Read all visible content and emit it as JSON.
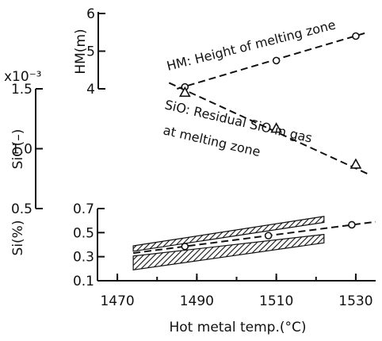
{
  "chart_data": [
    {
      "type": "line",
      "panel": "HM",
      "ylabel": "HM(m)",
      "ylim": [
        4,
        6
      ],
      "yticks": [
        "4",
        "5",
        "6"
      ],
      "series": [
        {
          "name": "HM: Height of melting zone",
          "marker": "circle",
          "x": [
            1487,
            1510,
            1530
          ],
          "y": [
            4.05,
            4.75,
            5.4
          ],
          "trend_x": [
            1485,
            1533
          ],
          "trend_y": [
            4.0,
            5.5
          ]
        }
      ],
      "annotation": "HM: Height of melting zone"
    },
    {
      "type": "line",
      "panel": "SiO",
      "ylabel": "SiO(–)",
      "yscale_label": "x10⁻³",
      "ylim": [
        0.5,
        1.5
      ],
      "yticks": [
        "0.5",
        "1.0",
        "1.5"
      ],
      "series": [
        {
          "name": "SiO: Residual SiO in gas at melting zone",
          "marker": "triangle",
          "x": [
            1487,
            1510,
            1530
          ],
          "y": [
            1.47,
            1.17,
            0.87
          ],
          "trend_x": [
            1483,
            1533
          ],
          "trend_y": [
            1.55,
            0.79
          ]
        }
      ],
      "annotation_lines": [
        "SiO: Residual SiO in gas",
        "at melting zone"
      ]
    },
    {
      "type": "line",
      "panel": "Si",
      "xlabel": "Hot metal temp.(°C)",
      "ylabel": "Si(%)",
      "ylim": [
        0.1,
        0.7
      ],
      "yticks": [
        "0.1",
        "0.3",
        "0.5",
        "0.7"
      ],
      "xlim": [
        1465,
        1535
      ],
      "xticks": [
        "1470",
        "1490",
        "1510",
        "1530"
      ],
      "series": [
        {
          "name": "Si",
          "marker": "circle",
          "x": [
            1487,
            1508,
            1529
          ],
          "y": [
            0.385,
            0.475,
            0.565
          ],
          "trend_x": [
            1474,
            1535
          ],
          "trend_y": [
            0.33,
            0.59
          ]
        }
      ],
      "bands": [
        {
          "x": [
            1474,
            1522
          ],
          "upper": [
            0.39,
            0.635
          ],
          "lower": [
            0.345,
            0.585
          ]
        },
        {
          "x": [
            1474,
            1522
          ],
          "upper": [
            0.305,
            0.485
          ],
          "lower": [
            0.19,
            0.415
          ]
        }
      ]
    }
  ]
}
